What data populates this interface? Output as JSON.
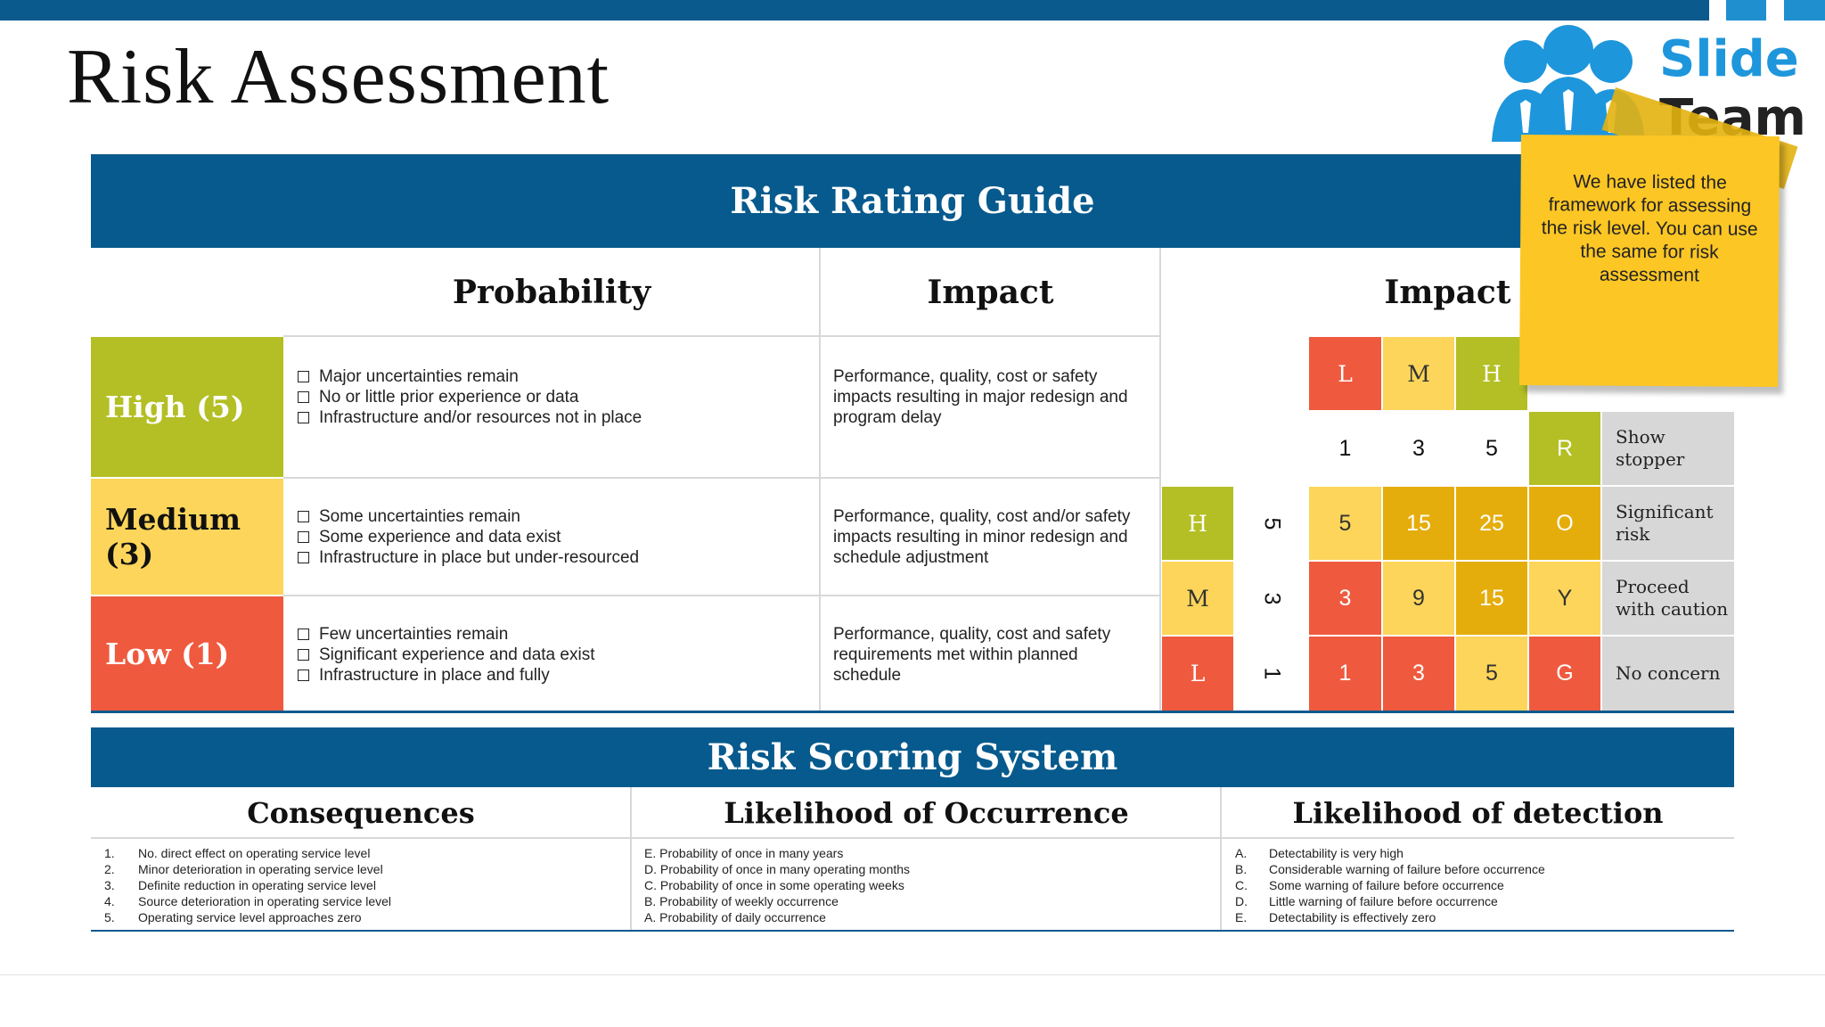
{
  "page_title": "Risk Assessment",
  "logo": {
    "line1": "Slide",
    "line2": "Team"
  },
  "note": "We have listed the framework for assessing the risk level. You can use the same for risk assessment",
  "guide": {
    "title": "Risk Rating Guide",
    "col_probability": "Probability",
    "col_impact": "Impact",
    "col_matrix": "Impact",
    "rows": [
      {
        "level": "High (5)",
        "bullets": [
          "Major uncertainties remain",
          "No or little prior experience or data",
          "Infrastructure and/or resources not in place"
        ],
        "impact": "Performance, quality, cost or safety impacts resulting in major redesign and program delay"
      },
      {
        "level": "Medium (3)",
        "bullets": [
          "Some uncertainties remain",
          "Some experience and data exist",
          "Infrastructure in place but under-resourced"
        ],
        "impact": "Performance, quality, cost and/or safety impacts resulting in minor redesign and schedule adjustment"
      },
      {
        "level": "Low (1)",
        "bullets": [
          "Few uncertainties remain",
          "Significant experience and data exist",
          "Infrastructure in place and fully"
        ],
        "impact": "Performance, quality, cost and safety requirements met within planned schedule"
      }
    ]
  },
  "matrix": {
    "impact_letters": [
      "L",
      "M",
      "H"
    ],
    "impact_values": [
      "1",
      "3",
      "5"
    ],
    "prob_letters": [
      "H",
      "M",
      "L"
    ],
    "prob_values": [
      "5",
      "3",
      "1"
    ],
    "grid": [
      [
        "5",
        "15",
        "25"
      ],
      [
        "3",
        "9",
        "15"
      ],
      [
        "1",
        "3",
        "5"
      ]
    ],
    "legend": [
      {
        "code": "R",
        "label": "Show stopper"
      },
      {
        "code": "O",
        "label": "Significant risk"
      },
      {
        "code": "Y",
        "label": "Proceed with caution"
      },
      {
        "code": "G",
        "label": "No concern"
      }
    ]
  },
  "scoring": {
    "title": "Risk Scoring System",
    "columns": [
      {
        "title": "Consequences",
        "items": [
          {
            "k": "1.",
            "v": "No. direct effect on operating service level"
          },
          {
            "k": "2.",
            "v": "Minor deterioration in operating service level"
          },
          {
            "k": "3.",
            "v": "Definite reduction in operating service level"
          },
          {
            "k": "4.",
            "v": "Source deterioration in operating service level"
          },
          {
            "k": "5.",
            "v": "Operating service level approaches zero"
          }
        ]
      },
      {
        "title": "Likelihood of Occurrence",
        "items": [
          {
            "k": "",
            "v": "E. Probability of once in many years"
          },
          {
            "k": "",
            "v": "D. Probability of once in many operating months"
          },
          {
            "k": "",
            "v": "C. Probability of once in some operating weeks"
          },
          {
            "k": "",
            "v": "B. Probability of weekly occurrence"
          },
          {
            "k": "",
            "v": "A. Probability of daily occurrence"
          }
        ]
      },
      {
        "title": "Likelihood of detection",
        "items": [
          {
            "k": "A.",
            "v": "Detectability is very high"
          },
          {
            "k": "B.",
            "v": "Considerable warning of failure before occurrence"
          },
          {
            "k": "C.",
            "v": "Some warning of failure before occurrence"
          },
          {
            "k": "D.",
            "v": "Little warning of failure before occurrence"
          },
          {
            "k": "E.",
            "v": "Detectability is effectively zero"
          }
        ]
      }
    ]
  }
}
